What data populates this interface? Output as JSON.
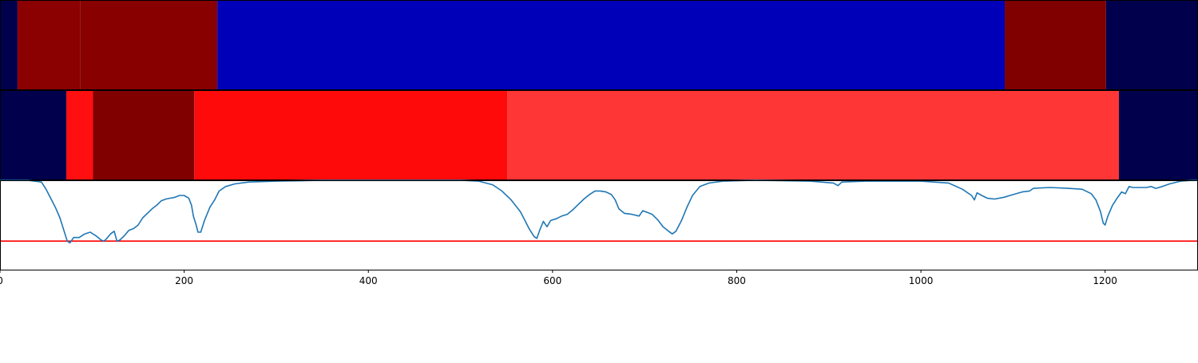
{
  "chart_data": {
    "type": "heatmap",
    "x_range": [
      0,
      1300
    ],
    "x_ticks": [
      0,
      200,
      400,
      600,
      800,
      1000,
      1200
    ],
    "bands": [
      {
        "name": "band-top",
        "segments": [
          {
            "start": 0,
            "end": 19,
            "color": "#00004c"
          },
          {
            "start": 19,
            "end": 87,
            "color": "#8b0000"
          },
          {
            "start": 87,
            "end": 236,
            "color": "#880000"
          },
          {
            "start": 236,
            "end": 1091,
            "color": "#0000b8"
          },
          {
            "start": 1091,
            "end": 1201,
            "color": "#800000"
          },
          {
            "start": 1201,
            "end": 1300,
            "color": "#00004c"
          }
        ]
      },
      {
        "name": "band-middle",
        "segments": [
          {
            "start": 0,
            "end": 72,
            "color": "#00004c"
          },
          {
            "start": 72,
            "end": 101,
            "color": "#ff0f0f"
          },
          {
            "start": 101,
            "end": 211,
            "color": "#800000"
          },
          {
            "start": 211,
            "end": 551,
            "color": "#ff0a0a"
          },
          {
            "start": 551,
            "end": 1215,
            "color": "#ff3636"
          },
          {
            "start": 1215,
            "end": 1300,
            "color": "#00004c"
          }
        ]
      }
    ],
    "line": {
      "color": "#1f77b4",
      "y_range": [
        0,
        1
      ],
      "points": [
        [
          0,
          1.0
        ],
        [
          30,
          1.0
        ],
        [
          45,
          0.98
        ],
        [
          50,
          0.9
        ],
        [
          55,
          0.8
        ],
        [
          60,
          0.7
        ],
        [
          65,
          0.58
        ],
        [
          70,
          0.42
        ],
        [
          73,
          0.32
        ],
        [
          76,
          0.3
        ],
        [
          80,
          0.36
        ],
        [
          86,
          0.36
        ],
        [
          92,
          0.4
        ],
        [
          98,
          0.42
        ],
        [
          104,
          0.38
        ],
        [
          110,
          0.33
        ],
        [
          113,
          0.32
        ],
        [
          116,
          0.35
        ],
        [
          120,
          0.4
        ],
        [
          124,
          0.43
        ],
        [
          127,
          0.32
        ],
        [
          130,
          0.33
        ],
        [
          135,
          0.38
        ],
        [
          140,
          0.44
        ],
        [
          145,
          0.46
        ],
        [
          150,
          0.5
        ],
        [
          155,
          0.58
        ],
        [
          160,
          0.63
        ],
        [
          165,
          0.68
        ],
        [
          170,
          0.72
        ],
        [
          175,
          0.77
        ],
        [
          180,
          0.79
        ],
        [
          185,
          0.8
        ],
        [
          190,
          0.81
        ],
        [
          195,
          0.83
        ],
        [
          200,
          0.83
        ],
        [
          205,
          0.8
        ],
        [
          208,
          0.72
        ],
        [
          210,
          0.6
        ],
        [
          213,
          0.5
        ],
        [
          215,
          0.42
        ],
        [
          218,
          0.42
        ],
        [
          222,
          0.55
        ],
        [
          228,
          0.7
        ],
        [
          233,
          0.78
        ],
        [
          238,
          0.88
        ],
        [
          245,
          0.93
        ],
        [
          255,
          0.96
        ],
        [
          270,
          0.98
        ],
        [
          300,
          0.99
        ],
        [
          350,
          1.0
        ],
        [
          500,
          1.0
        ],
        [
          520,
          0.99
        ],
        [
          535,
          0.95
        ],
        [
          545,
          0.88
        ],
        [
          555,
          0.78
        ],
        [
          565,
          0.65
        ],
        [
          570,
          0.55
        ],
        [
          575,
          0.45
        ],
        [
          580,
          0.37
        ],
        [
          583,
          0.35
        ],
        [
          586,
          0.44
        ],
        [
          590,
          0.54
        ],
        [
          594,
          0.48
        ],
        [
          598,
          0.55
        ],
        [
          604,
          0.57
        ],
        [
          610,
          0.6
        ],
        [
          616,
          0.62
        ],
        [
          622,
          0.67
        ],
        [
          628,
          0.73
        ],
        [
          634,
          0.79
        ],
        [
          640,
          0.84
        ],
        [
          646,
          0.88
        ],
        [
          652,
          0.88
        ],
        [
          658,
          0.87
        ],
        [
          664,
          0.84
        ],
        [
          668,
          0.78
        ],
        [
          672,
          0.68
        ],
        [
          678,
          0.63
        ],
        [
          686,
          0.62
        ],
        [
          694,
          0.6
        ],
        [
          698,
          0.66
        ],
        [
          703,
          0.64
        ],
        [
          708,
          0.62
        ],
        [
          714,
          0.56
        ],
        [
          720,
          0.48
        ],
        [
          726,
          0.43
        ],
        [
          730,
          0.4
        ],
        [
          734,
          0.43
        ],
        [
          740,
          0.55
        ],
        [
          746,
          0.7
        ],
        [
          752,
          0.83
        ],
        [
          760,
          0.93
        ],
        [
          770,
          0.97
        ],
        [
          785,
          0.99
        ],
        [
          820,
          1.0
        ],
        [
          880,
          0.99
        ],
        [
          905,
          0.97
        ],
        [
          910,
          0.94
        ],
        [
          914,
          0.98
        ],
        [
          940,
          0.99
        ],
        [
          1000,
          0.99
        ],
        [
          1030,
          0.97
        ],
        [
          1045,
          0.9
        ],
        [
          1055,
          0.83
        ],
        [
          1058,
          0.78
        ],
        [
          1061,
          0.86
        ],
        [
          1066,
          0.83
        ],
        [
          1072,
          0.8
        ],
        [
          1080,
          0.79
        ],
        [
          1090,
          0.81
        ],
        [
          1100,
          0.84
        ],
        [
          1110,
          0.87
        ],
        [
          1118,
          0.88
        ],
        [
          1122,
          0.91
        ],
        [
          1140,
          0.92
        ],
        [
          1160,
          0.91
        ],
        [
          1175,
          0.9
        ],
        [
          1185,
          0.85
        ],
        [
          1190,
          0.78
        ],
        [
          1195,
          0.65
        ],
        [
          1198,
          0.52
        ],
        [
          1200,
          0.5
        ],
        [
          1203,
          0.6
        ],
        [
          1208,
          0.72
        ],
        [
          1213,
          0.8
        ],
        [
          1218,
          0.87
        ],
        [
          1222,
          0.85
        ],
        [
          1226,
          0.93
        ],
        [
          1230,
          0.92
        ],
        [
          1245,
          0.92
        ],
        [
          1250,
          0.93
        ],
        [
          1255,
          0.91
        ],
        [
          1262,
          0.93
        ],
        [
          1270,
          0.96
        ],
        [
          1282,
          0.99
        ],
        [
          1295,
          1.0
        ],
        [
          1300,
          1.0
        ]
      ]
    },
    "threshold": {
      "value": 0.32,
      "color": "#ff0000"
    }
  }
}
